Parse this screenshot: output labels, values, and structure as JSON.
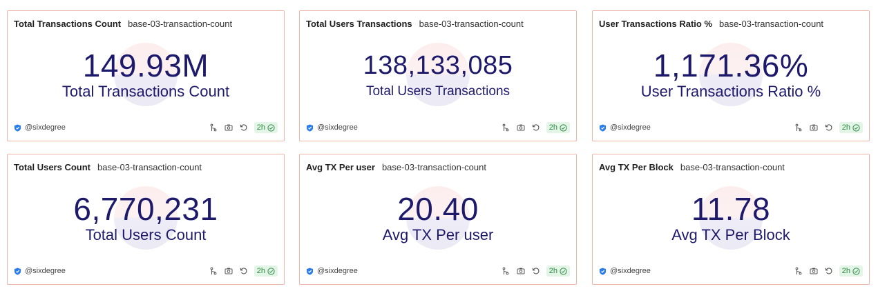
{
  "dashboard": {
    "cards": [
      {
        "title": "Total Transactions Count",
        "query": "base-03-transaction-count",
        "value": "149.93M",
        "label": "Total Transactions Count",
        "author": "@sixdegree",
        "age": "2h"
      },
      {
        "title": "Total Users Transactions",
        "query": "base-03-transaction-count",
        "value": "138,133,085",
        "label": "Total Users Transactions",
        "author": "@sixdegree",
        "age": "2h"
      },
      {
        "title": "User Transactions Ratio %",
        "query": "base-03-transaction-count",
        "value": "1,171.36%",
        "label": "User Transactions Ratio %",
        "author": "@sixdegree",
        "age": "2h"
      },
      {
        "title": "Total Users Count",
        "query": "base-03-transaction-count",
        "value": "6,770,231",
        "label": "Total Users Count",
        "author": "@sixdegree",
        "age": "2h"
      },
      {
        "title": "Avg TX Per user",
        "query": "base-03-transaction-count",
        "value": "20.40",
        "label": "Avg TX Per user",
        "author": "@sixdegree",
        "age": "2h"
      },
      {
        "title": "Avg TX Per Block",
        "query": "base-03-transaction-count",
        "value": "11.78",
        "label": "Avg TX Per Block",
        "author": "@sixdegree",
        "age": "2h"
      }
    ]
  },
  "icons": {
    "author": "shield-icon",
    "tools": [
      "fork-icon",
      "camera-icon",
      "refresh-icon"
    ],
    "status": "check-circle-icon"
  },
  "colors": {
    "card_border": "#f0b4a6",
    "counter_text": "#1e1a6b",
    "badge_bg": "#e3f5e7",
    "badge_text": "#2f8a45",
    "shield": "#2b7de9"
  }
}
